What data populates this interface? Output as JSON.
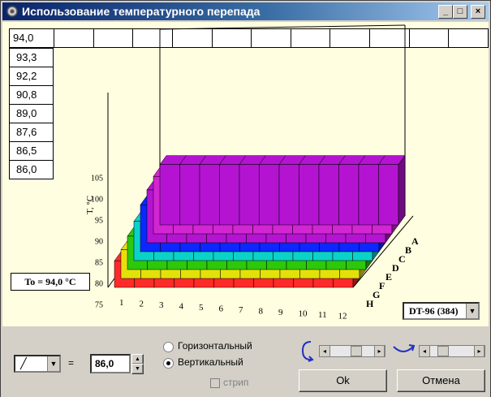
{
  "window": {
    "title": "Использование температурного перепада",
    "minimize_glyph": "_",
    "maximize_glyph": "□",
    "close_glyph": "×"
  },
  "top_row": {
    "value": "94,0",
    "empty_cells": 11
  },
  "left_column": [
    "93,3",
    "92,2",
    "90,8",
    "89,0",
    "87,6",
    "86,5",
    "86,0"
  ],
  "chart_data": {
    "type": "bar3d",
    "ylabel": "T, °C",
    "y_ticks": [
      75,
      80,
      85,
      90,
      95,
      100,
      105
    ],
    "x_categories": [
      "1",
      "2",
      "3",
      "4",
      "5",
      "6",
      "7",
      "8",
      "9",
      "10",
      "11",
      "12"
    ],
    "z_categories": [
      "A",
      "B",
      "C",
      "D",
      "E",
      "F",
      "G",
      "H"
    ],
    "row_values": {
      "H": 86.0,
      "G": 86.5,
      "F": 87.6,
      "E": 89.0,
      "D": 90.8,
      "C": 92.2,
      "B": 93.3,
      "A": 94.0
    },
    "row_colors": [
      "#ff2a2a",
      "#e2e20a",
      "#2ec80a",
      "#0ad2c8",
      "#0a28ff",
      "#b414d2",
      "#d226d2",
      "#b414d2"
    ]
  },
  "to_label": "To = 94,0 °C",
  "sensor_select": {
    "value": "DT-96 (384)"
  },
  "controls": {
    "curve_glyph": "╱",
    "equals": "=",
    "numeric_value": "86,0",
    "radio_horizontal": "Горизонтальный",
    "radio_vertical": "Вертикальный",
    "checkbox_strip": "стрип",
    "ok": "Ok",
    "cancel": "Отмена"
  }
}
